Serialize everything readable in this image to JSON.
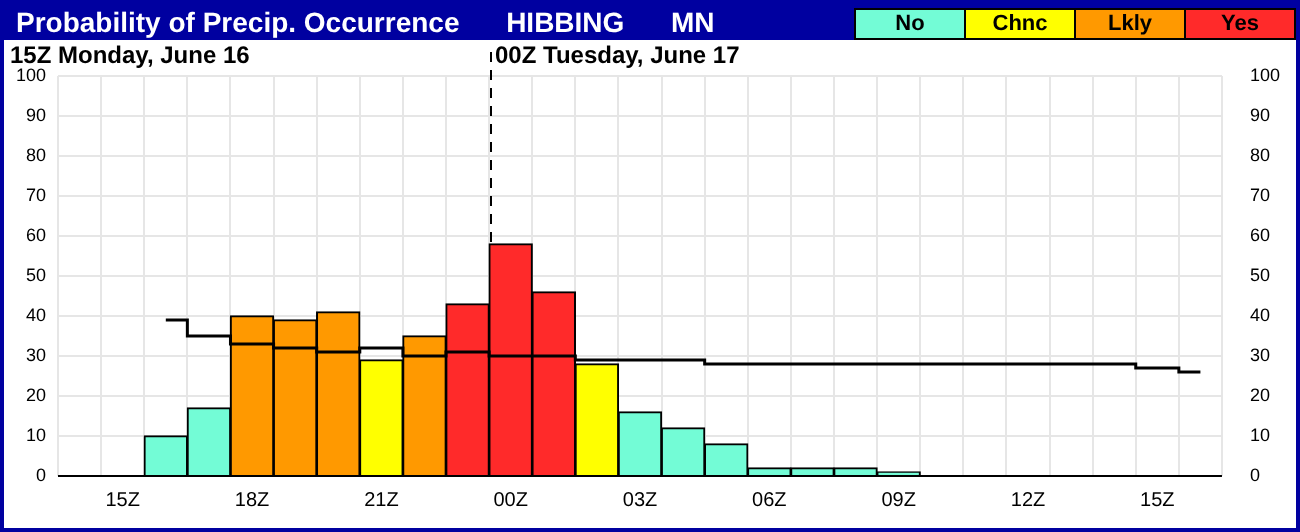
{
  "chart_data": {
    "type": "bar",
    "title": "Probability of Precip. Occurrence      HIBBING      MN",
    "categories": [
      null,
      "15Z",
      null,
      null,
      "18Z",
      null,
      null,
      "21Z",
      null,
      null,
      "00Z",
      null,
      null,
      "03Z",
      null,
      null,
      "06Z",
      null,
      null,
      "09Z",
      null,
      null,
      "12Z",
      null,
      null,
      "15Z",
      null
    ],
    "series": [
      {
        "name": "No",
        "color": "#73fcd6",
        "values": [
          null,
          null,
          10,
          17,
          null,
          null,
          null,
          null,
          null,
          null,
          null,
          null,
          null,
          16,
          12,
          8,
          2,
          2,
          2,
          1,
          null,
          null,
          null,
          null,
          null,
          null,
          null
        ]
      },
      {
        "name": "Chnc",
        "color": "#ffff00",
        "values": [
          null,
          null,
          null,
          null,
          null,
          null,
          null,
          29,
          null,
          null,
          null,
          null,
          28,
          null,
          null,
          null,
          null,
          null,
          null,
          null,
          null,
          null,
          null,
          null,
          null,
          null,
          null
        ]
      },
      {
        "name": "Lkly",
        "color": "#ff9900",
        "values": [
          null,
          null,
          null,
          null,
          40,
          39,
          41,
          null,
          35,
          null,
          null,
          null,
          null,
          null,
          null,
          null,
          null,
          null,
          null,
          null,
          null,
          null,
          null,
          null,
          null,
          null,
          null
        ]
      },
      {
        "name": "Yes",
        "color": "#ff2a2a",
        "values": [
          null,
          null,
          null,
          null,
          null,
          null,
          null,
          null,
          null,
          43,
          58,
          46,
          null,
          null,
          null,
          null,
          null,
          null,
          null,
          null,
          null,
          null,
          null,
          null,
          null,
          null,
          null
        ]
      },
      {
        "type": "step",
        "color": "#000000",
        "values": [
          null,
          null,
          39,
          35,
          33,
          32,
          31,
          32,
          30,
          31,
          30,
          30,
          29,
          29,
          29,
          28,
          28,
          28,
          28,
          28,
          28,
          28,
          28,
          28,
          28,
          27,
          26
        ]
      }
    ],
    "stacked": true,
    "ylim": [
      0,
      100
    ],
    "yticks": [
      0,
      10,
      20,
      30,
      40,
      50,
      60,
      70,
      80,
      90,
      100
    ],
    "y2lim": [
      0,
      100
    ],
    "y2ticks": [
      0,
      10,
      20,
      30,
      40,
      50,
      60,
      70,
      80,
      90,
      100
    ],
    "ref_lines": [
      {
        "axis": "x",
        "value": "00Z",
        "label": "00Z Tuesday, June 17",
        "line_style": "dashed",
        "color": "#000000"
      }
    ],
    "annotations": [
      "15Z Monday, June 16"
    ],
    "grid": true,
    "legend": "top right"
  }
}
